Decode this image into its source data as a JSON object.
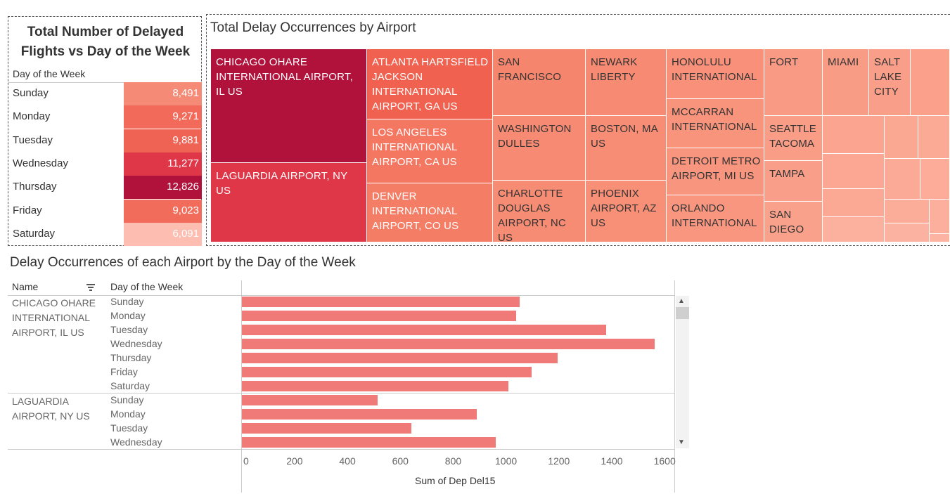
{
  "day_table": {
    "title_line1": "Total Number of Delayed",
    "title_line2": "Flights vs Day of the Week",
    "header": "Day of the Week",
    "rows": [
      {
        "day": "Sunday",
        "value": "8,491",
        "color": "#f58a76"
      },
      {
        "day": "Monday",
        "value": "9,271",
        "color": "#f16a5a"
      },
      {
        "day": "Tuesday",
        "value": "9,881",
        "color": "#ef6354"
      },
      {
        "day": "Wednesday",
        "value": "11,277",
        "color": "#e03748"
      },
      {
        "day": "Thursday",
        "value": "12,826",
        "color": "#b0123b"
      },
      {
        "day": "Friday",
        "value": "9,023",
        "color": "#f16c5b"
      },
      {
        "day": "Saturday",
        "value": "6,091",
        "color": "#fdbdb0"
      }
    ]
  },
  "treemap": {
    "title": "Total Delay Occurrences by Airport",
    "cells": [
      {
        "label": "CHICAGO OHARE INTERNATIONAL AIRPORT, IL US",
        "color": "#b0123b"
      },
      {
        "label": "LAGUARDIA AIRPORT, NY US",
        "color": "#e03748"
      },
      {
        "label": "ATLANTA HARTSFIELD JACKSON INTERNATIONAL AIRPORT, GA US",
        "color": "#f0614f"
      },
      {
        "label": "LOS ANGELES INTERNATIONAL AIRPORT, CA US",
        "color": "#f47762"
      },
      {
        "label": "DENVER INTERNATIONAL AIRPORT, CO US",
        "color": "#f47d66"
      },
      {
        "label": "SAN FRANCISCO",
        "color": "#f6856d"
      },
      {
        "label": "WASHINGTON DULLES",
        "color": "#f78a72"
      },
      {
        "label": "CHARLOTTE DOUGLAS AIRPORT, NC US",
        "color": "#f78c74"
      },
      {
        "label": "NEWARK LIBERTY",
        "color": "#f78a72"
      },
      {
        "label": "BOSTON, MA US",
        "color": "#f78d75"
      },
      {
        "label": "PHOENIX AIRPORT, AZ US",
        "color": "#f88f77"
      },
      {
        "label": "HONOLULU INTERNATIONAL",
        "color": "#f8907a"
      },
      {
        "label": "MCCARRAN INTERNATIONAL",
        "color": "#f8937c"
      },
      {
        "label": "DETROIT METRO AIRPORT, MI US",
        "color": "#f8957e"
      },
      {
        "label": "ORLANDO INTERNATIONAL",
        "color": "#f89680"
      },
      {
        "label": "FORT",
        "color": "#f99a84"
      },
      {
        "label": "MIAMI",
        "color": "#f99c86"
      },
      {
        "label": "SALT LAKE CITY",
        "color": "#f99e88"
      },
      {
        "label": "",
        "color": "#faa08b"
      },
      {
        "label": "SEATTLE TACOMA",
        "color": "#f99d87"
      },
      {
        "label": "TAMPA",
        "color": "#f99e89"
      },
      {
        "label": "SAN DIEGO",
        "color": "#faa18c"
      },
      {
        "label": "",
        "color": "#fba591"
      },
      {
        "label": "",
        "color": "#fba893"
      },
      {
        "label": "",
        "color": "#fbaa96"
      },
      {
        "label": "",
        "color": "#fba794"
      },
      {
        "label": "",
        "color": "#fbaa97"
      },
      {
        "label": "",
        "color": "#fcac99"
      },
      {
        "label": "",
        "color": "#fba995"
      },
      {
        "label": "",
        "color": "#fcad9a"
      },
      {
        "label": "",
        "color": "#fcaf9d"
      },
      {
        "label": "",
        "color": "#fcb09e"
      },
      {
        "label": "",
        "color": "#fcb2a0"
      },
      {
        "label": "",
        "color": "#fcb3a1"
      }
    ]
  },
  "bar_chart": {
    "title": "Delay Occurrences of each Airport by the Day of the Week",
    "col_name": "Name",
    "col_day": "Day of the Week",
    "xlabel": "Sum of Dep Del15",
    "sort_icon": "sort-icon"
  },
  "chart_data": [
    {
      "type": "table",
      "title": "Total Number of Delayed Flights vs Day of the Week",
      "columns": [
        "Day of the Week",
        "Delayed Flights"
      ],
      "rows": [
        [
          "Sunday",
          8491
        ],
        [
          "Monday",
          9271
        ],
        [
          "Tuesday",
          9881
        ],
        [
          "Wednesday",
          11277
        ],
        [
          "Thursday",
          12826
        ],
        [
          "Friday",
          9023
        ],
        [
          "Saturday",
          6091
        ]
      ]
    },
    {
      "type": "heatmap",
      "title": "Total Delay Occurrences by Airport",
      "categories": [
        "CHICAGO OHARE INTERNATIONAL AIRPORT, IL US",
        "LAGUARDIA AIRPORT, NY US",
        "ATLANTA HARTSFIELD JACKSON INTERNATIONAL AIRPORT, GA US",
        "LOS ANGELES INTERNATIONAL AIRPORT, CA US",
        "DENVER INTERNATIONAL AIRPORT, CO US",
        "SAN FRANCISCO",
        "WASHINGTON DULLES",
        "CHARLOTTE DOUGLAS AIRPORT, NC US",
        "NEWARK LIBERTY",
        "BOSTON, MA US",
        "PHOENIX AIRPORT, AZ US",
        "HONOLULU INTERNATIONAL",
        "MCCARRAN INTERNATIONAL",
        "DETROIT METRO AIRPORT, MI US",
        "ORLANDO INTERNATIONAL",
        "FORT",
        "MIAMI",
        "SALT LAKE CITY",
        "SEATTLE TACOMA",
        "TAMPA",
        "SAN DIEGO"
      ]
    },
    {
      "type": "bar",
      "title": "Delay Occurrences of each Airport by the Day of the Week",
      "xlabel": "Sum of Dep Del15",
      "xlim": [
        0,
        1650
      ],
      "xticks": [
        0,
        200,
        400,
        600,
        800,
        1000,
        1200,
        1400,
        1600
      ],
      "groups": [
        {
          "name": "CHICAGO OHARE INTERNATIONAL AIRPORT, IL US",
          "name_lines": [
            "CHICAGO OHARE",
            "INTERNATIONAL",
            "AIRPORT, IL US"
          ],
          "categories": [
            "Sunday",
            "Monday",
            "Tuesday",
            "Wednesday",
            "Thursday",
            "Friday",
            "Saturday"
          ],
          "values": [
            1050,
            1037,
            1378,
            1560,
            1195,
            1097,
            1007
          ]
        },
        {
          "name": "LAGUARDIA AIRPORT, NY US",
          "name_lines": [
            "LAGUARDIA",
            "AIRPORT, NY US"
          ],
          "categories": [
            "Sunday",
            "Monday",
            "Tuesday",
            "Wednesday"
          ],
          "values": [
            514,
            888,
            640,
            960
          ]
        }
      ]
    }
  ]
}
